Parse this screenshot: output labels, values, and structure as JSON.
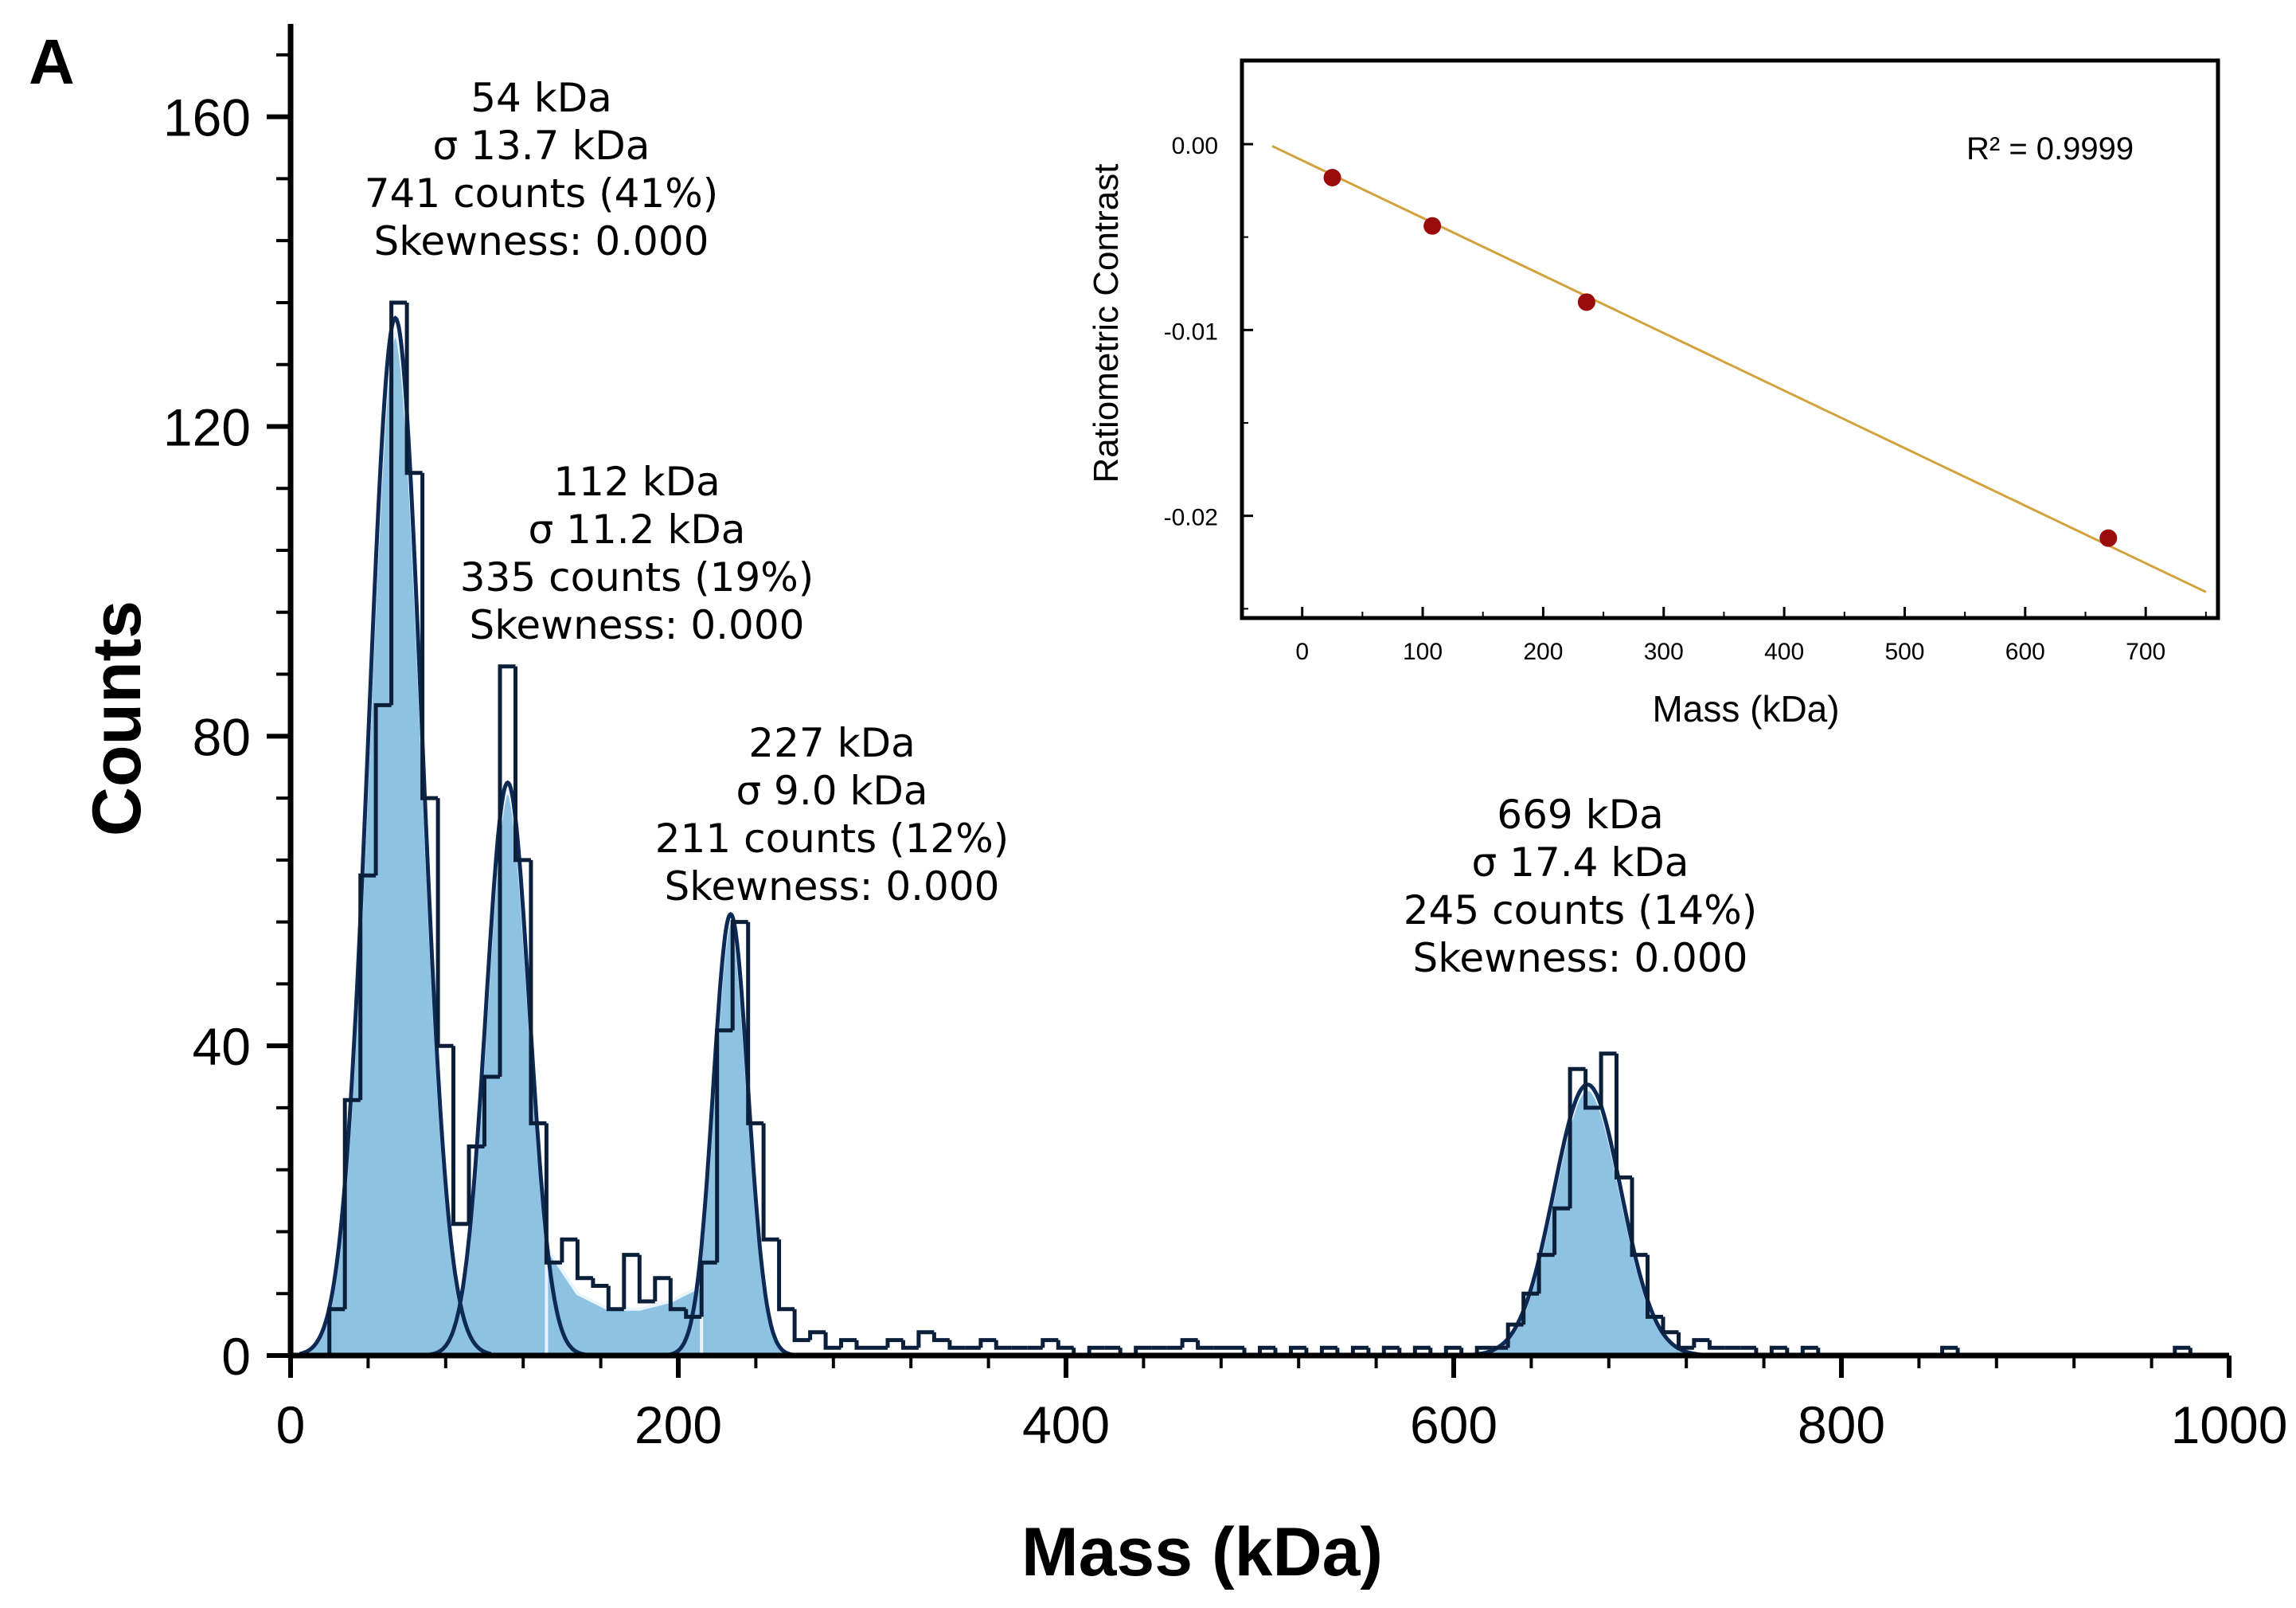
{
  "panel_label": "A",
  "colors": {
    "fill": "#8ec2e2",
    "fill_edge": "#eaf5fb",
    "step": "#0b1f3a",
    "gauss": "#0d2a57",
    "axis": "#000000",
    "inset_line": "#d2a23c",
    "inset_point": "#9b0b0b"
  },
  "chart_data": [
    {
      "type": "histogram",
      "title": "",
      "xlabel": "Mass (kDa)",
      "ylabel": "Counts",
      "xlim": [
        0,
        1000
      ],
      "ylim": [
        0,
        172
      ],
      "xticks": [
        0,
        200,
        400,
        600,
        800,
        1000
      ],
      "xtick_labels": [
        "0",
        "200",
        "400",
        "600",
        "800",
        "1000"
      ],
      "yticks": [
        0,
        40,
        80,
        120,
        160
      ],
      "ytick_labels": [
        "0",
        "40",
        "80",
        "120",
        "160"
      ],
      "bin_width": 8,
      "bins": [
        [
          20,
          6
        ],
        [
          28,
          33
        ],
        [
          36,
          62
        ],
        [
          44,
          84
        ],
        [
          52,
          136
        ],
        [
          60,
          114
        ],
        [
          68,
          72
        ],
        [
          76,
          40
        ],
        [
          84,
          17
        ],
        [
          92,
          27
        ],
        [
          100,
          36
        ],
        [
          108,
          89
        ],
        [
          116,
          64
        ],
        [
          124,
          30
        ],
        [
          132,
          12
        ],
        [
          140,
          15
        ],
        [
          148,
          10
        ],
        [
          156,
          9
        ],
        [
          164,
          6
        ],
        [
          172,
          13
        ],
        [
          180,
          7
        ],
        [
          188,
          10
        ],
        [
          196,
          6
        ],
        [
          204,
          5
        ],
        [
          212,
          12
        ],
        [
          220,
          42
        ],
        [
          228,
          56
        ],
        [
          236,
          30
        ],
        [
          244,
          15
        ],
        [
          252,
          6
        ],
        [
          260,
          2
        ],
        [
          268,
          3
        ],
        [
          276,
          1
        ],
        [
          284,
          2
        ],
        [
          292,
          1
        ],
        [
          300,
          1
        ],
        [
          308,
          2
        ],
        [
          316,
          1
        ],
        [
          324,
          3
        ],
        [
          332,
          2
        ],
        [
          340,
          1
        ],
        [
          348,
          1
        ],
        [
          356,
          2
        ],
        [
          364,
          1
        ],
        [
          372,
          1
        ],
        [
          380,
          1
        ],
        [
          388,
          2
        ],
        [
          396,
          1
        ],
        [
          404,
          0
        ],
        [
          412,
          1
        ],
        [
          420,
          1
        ],
        [
          428,
          0
        ],
        [
          436,
          1
        ],
        [
          444,
          1
        ],
        [
          452,
          1
        ],
        [
          460,
          2
        ],
        [
          468,
          1
        ],
        [
          476,
          1
        ],
        [
          484,
          1
        ],
        [
          492,
          0
        ],
        [
          500,
          1
        ],
        [
          508,
          0
        ],
        [
          516,
          1
        ],
        [
          524,
          0
        ],
        [
          532,
          1
        ],
        [
          540,
          0
        ],
        [
          548,
          1
        ],
        [
          556,
          0
        ],
        [
          564,
          1
        ],
        [
          572,
          0
        ],
        [
          580,
          1
        ],
        [
          588,
          0
        ],
        [
          596,
          1
        ],
        [
          604,
          0
        ],
        [
          612,
          1
        ],
        [
          620,
          1
        ],
        [
          628,
          4
        ],
        [
          636,
          8
        ],
        [
          644,
          13
        ],
        [
          652,
          19
        ],
        [
          660,
          37
        ],
        [
          668,
          32
        ],
        [
          676,
          39
        ],
        [
          684,
          23
        ],
        [
          692,
          13
        ],
        [
          700,
          5
        ],
        [
          708,
          3
        ],
        [
          716,
          1
        ],
        [
          724,
          2
        ],
        [
          732,
          1
        ],
        [
          740,
          1
        ],
        [
          748,
          1
        ],
        [
          756,
          0
        ],
        [
          764,
          1
        ],
        [
          772,
          0
        ],
        [
          780,
          1
        ],
        [
          788,
          0
        ],
        [
          796,
          0
        ],
        [
          804,
          0
        ],
        [
          812,
          0
        ],
        [
          820,
          0
        ],
        [
          828,
          0
        ],
        [
          836,
          0
        ],
        [
          844,
          0
        ],
        [
          852,
          1
        ],
        [
          860,
          0
        ],
        [
          868,
          0
        ],
        [
          876,
          0
        ],
        [
          884,
          0
        ],
        [
          892,
          0
        ],
        [
          900,
          0
        ],
        [
          908,
          0
        ],
        [
          916,
          0
        ],
        [
          924,
          0
        ],
        [
          932,
          0
        ],
        [
          940,
          0
        ],
        [
          948,
          0
        ],
        [
          956,
          0
        ],
        [
          964,
          0
        ],
        [
          972,
          1
        ]
      ],
      "peaks": [
        {
          "mean": 54,
          "sigma": 13.7,
          "height": 134,
          "label_mass": "54 kDa",
          "label_sigma": "σ 13.7 kDa",
          "label_counts": "741 counts (41%)",
          "label_skew": "Skewness: 0.000"
        },
        {
          "mean": 112,
          "sigma": 11.2,
          "height": 74,
          "label_mass": "112 kDa",
          "label_sigma": "σ 11.2 kDa",
          "label_counts": "335 counts (19%)",
          "label_skew": "Skewness: 0.000"
        },
        {
          "mean": 227,
          "sigma": 9.0,
          "height": 57,
          "label_mass": "227 kDa",
          "label_sigma": "σ 9.0 kDa",
          "label_counts": "211 counts (12%)",
          "label_skew": "Skewness: 0.000"
        },
        {
          "mean": 669,
          "sigma": 17.4,
          "height": 35,
          "label_mass": "669 kDa",
          "label_sigma": "σ 17.4 kDa",
          "label_counts": "245 counts (14%)",
          "label_skew": "Skewness: 0.000"
        }
      ]
    },
    {
      "type": "scatter",
      "title": "",
      "xlabel": "Mass (kDa)",
      "ylabel": "Ratiometric Contrast",
      "xlim": [
        -50,
        760
      ],
      "ylim": [
        -0.0255,
        0.0045
      ],
      "xticks": [
        0,
        100,
        200,
        300,
        400,
        500,
        600,
        700
      ],
      "xtick_labels": [
        "0",
        "100",
        "200",
        "300",
        "400",
        "500",
        "600",
        "700"
      ],
      "yticks": [
        0.0,
        -0.01,
        -0.02
      ],
      "ytick_labels": [
        "0.00",
        "-0.01",
        "-0.02"
      ],
      "points": [
        {
          "x": 25,
          "y": -0.0018
        },
        {
          "x": 108,
          "y": -0.0044
        },
        {
          "x": 236,
          "y": -0.0085
        },
        {
          "x": 669,
          "y": -0.0212
        }
      ],
      "fit": {
        "x": [
          -25,
          750
        ],
        "y": [
          -0.0001,
          -0.0241
        ]
      },
      "r2_label": "R² = 0.9999"
    }
  ]
}
